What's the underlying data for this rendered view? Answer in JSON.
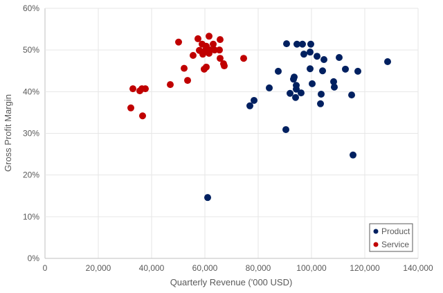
{
  "chart_data": {
    "type": "scatter",
    "title": "",
    "xlabel": "Quarterly Revenue ('000 USD)",
    "ylabel": "Gross Profit Margin",
    "xlim": [
      0,
      140000
    ],
    "ylim": [
      0,
      60
    ],
    "xticks": [
      "0",
      "20,000",
      "40,000",
      "60,000",
      "80,000",
      "100,000",
      "120,000",
      "140,000"
    ],
    "yticks": [
      "0%",
      "10%",
      "20%",
      "30%",
      "40%",
      "50%",
      "60%"
    ],
    "grid": true,
    "legend": "bottom-right",
    "series": [
      {
        "name": "Product",
        "color": "#002060",
        "points": [
          [
            90650,
            51.5
          ],
          [
            94540,
            51.4
          ],
          [
            96620,
            51.4
          ],
          [
            99740,
            51.4
          ],
          [
            99480,
            49.5
          ],
          [
            97140,
            49.0
          ],
          [
            102080,
            48.5
          ],
          [
            104680,
            47.7
          ],
          [
            110390,
            48.2
          ],
          [
            128570,
            47.2
          ],
          [
            87530,
            44.9
          ],
          [
            99480,
            45.5
          ],
          [
            104160,
            45.0
          ],
          [
            112730,
            45.4
          ],
          [
            117400,
            44.9
          ],
          [
            93510,
            43.5
          ],
          [
            93250,
            43.0
          ],
          [
            84160,
            40.9
          ],
          [
            94290,
            41.5
          ],
          [
            94290,
            40.6
          ],
          [
            91950,
            39.6
          ],
          [
            96100,
            39.7
          ],
          [
            94030,
            38.6
          ],
          [
            100260,
            41.9
          ],
          [
            108310,
            42.4
          ],
          [
            108570,
            41.1
          ],
          [
            103640,
            39.4
          ],
          [
            115070,
            39.2
          ],
          [
            103380,
            37.1
          ],
          [
            78440,
            37.9
          ],
          [
            76880,
            36.6
          ],
          [
            90390,
            30.9
          ],
          [
            115590,
            24.8
          ],
          [
            61040,
            14.6
          ]
        ]
      },
      {
        "name": "Service",
        "color": "#C00000",
        "points": [
          [
            50130,
            51.9
          ],
          [
            57400,
            52.7
          ],
          [
            61560,
            53.3
          ],
          [
            65710,
            52.5
          ],
          [
            58960,
            51.4
          ],
          [
            60520,
            50.9
          ],
          [
            63120,
            51.4
          ],
          [
            57920,
            49.9
          ],
          [
            60260,
            50.0
          ],
          [
            61820,
            50.0
          ],
          [
            63640,
            50.0
          ],
          [
            65460,
            50.0
          ],
          [
            59220,
            49.0
          ],
          [
            61560,
            49.2
          ],
          [
            55580,
            48.7
          ],
          [
            65710,
            48.0
          ],
          [
            74550,
            48.0
          ],
          [
            67010,
            46.7
          ],
          [
            67270,
            46.2
          ],
          [
            52210,
            45.6
          ],
          [
            60520,
            45.9
          ],
          [
            59740,
            45.4
          ],
          [
            53510,
            42.7
          ],
          [
            47010,
            41.7
          ],
          [
            32990,
            40.7
          ],
          [
            35580,
            40.2
          ],
          [
            36360,
            40.7
          ],
          [
            37660,
            40.7
          ],
          [
            32210,
            36.1
          ],
          [
            36620,
            34.2
          ]
        ]
      }
    ]
  }
}
